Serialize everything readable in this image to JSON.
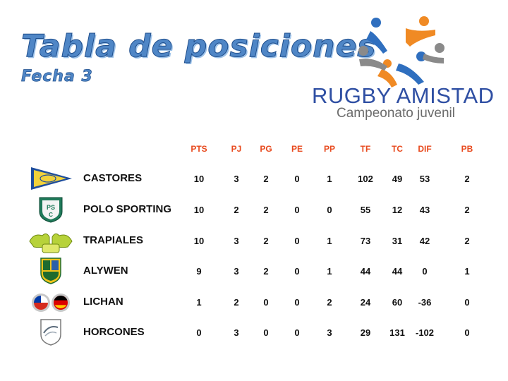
{
  "header": {
    "title": "Tabla de posiciones",
    "subtitle": "Fecha 3"
  },
  "brand": {
    "name": "RUGBY AMISTAD",
    "tagline": "Campeonato juvenil",
    "colors": {
      "blue": "#2f4fa3",
      "orange": "#f08a24",
      "gray": "#8a8a8a",
      "header_red": "#e84a1e"
    }
  },
  "columns": [
    "PTS",
    "PJ",
    "PG",
    "PE",
    "PP",
    "TF",
    "TC",
    "DIF",
    "PB"
  ],
  "teams": [
    {
      "name": "CASTORES",
      "emblem": "castores-pennant-icon",
      "stats": [
        "10",
        "3",
        "2",
        "0",
        "1",
        "102",
        "49",
        "53",
        "2"
      ]
    },
    {
      "name": "POLO SPORTING",
      "emblem": "polo-sporting-shield-icon",
      "stats": [
        "10",
        "2",
        "2",
        "0",
        "0",
        "55",
        "12",
        "43",
        "2"
      ]
    },
    {
      "name": "TRAPIALES",
      "emblem": "trapiales-pumas-icon",
      "stats": [
        "10",
        "3",
        "2",
        "0",
        "1",
        "73",
        "31",
        "42",
        "2"
      ]
    },
    {
      "name": "ALYWEN",
      "emblem": "alywen-shield-icon",
      "stats": [
        "9",
        "3",
        "2",
        "0",
        "1",
        "44",
        "44",
        "0",
        "1"
      ]
    },
    {
      "name": "LICHAN",
      "emblem": "chile-germany-flags-icon",
      "stats": [
        "1",
        "2",
        "0",
        "0",
        "2",
        "24",
        "60",
        "-36",
        "0"
      ]
    },
    {
      "name": "HORCONES",
      "emblem": "horcones-shield-icon",
      "stats": [
        "0",
        "3",
        "0",
        "0",
        "3",
        "29",
        "131",
        "-102",
        "0"
      ]
    }
  ]
}
